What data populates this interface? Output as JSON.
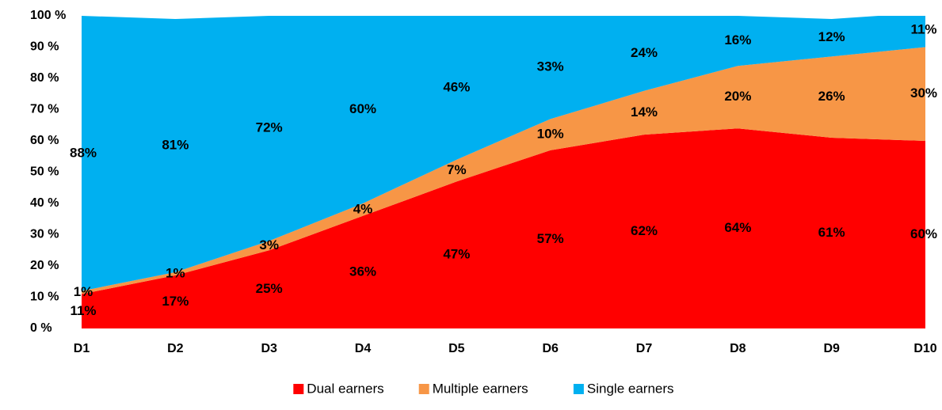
{
  "chart_data": {
    "type": "stacked-area",
    "categories": [
      "D1",
      "D2",
      "D3",
      "D4",
      "D5",
      "D6",
      "D7",
      "D8",
      "D9",
      "D10"
    ],
    "series": [
      {
        "name": "Dual earners",
        "color": "#ff0000",
        "values": [
          11,
          17,
          25,
          36,
          47,
          57,
          62,
          64,
          61,
          60
        ],
        "value_labels": [
          "11%",
          "17%",
          "25%",
          "36%",
          "47%",
          "57%",
          "62%",
          "64%",
          "61%",
          "60%"
        ]
      },
      {
        "name": "Multiple earners",
        "color": "#f79646",
        "values": [
          1,
          1,
          3,
          4,
          7,
          10,
          14,
          20,
          26,
          30
        ],
        "value_labels": [
          "1%",
          "1%",
          "3%",
          "4%",
          "7%",
          "10%",
          "14%",
          "20%",
          "26%",
          "30%"
        ]
      },
      {
        "name": "Single earners",
        "color": "#00b0f0",
        "values": [
          88,
          81,
          72,
          60,
          46,
          33,
          24,
          16,
          12,
          11
        ],
        "value_labels": [
          "88%",
          "81%",
          "72%",
          "60%",
          "46%",
          "33%",
          "24%",
          "16%",
          "12%",
          "11%"
        ]
      }
    ],
    "ylim": [
      0,
      100
    ],
    "yticks": [
      {
        "value": 0,
        "label": "0 %"
      },
      {
        "value": 10,
        "label": "10 %"
      },
      {
        "value": 20,
        "label": "20 %"
      },
      {
        "value": 30,
        "label": "30 %"
      },
      {
        "value": 40,
        "label": "40 %"
      },
      {
        "value": 50,
        "label": "50 %"
      },
      {
        "value": 60,
        "label": "60 %"
      },
      {
        "value": 70,
        "label": "70 %"
      },
      {
        "value": 80,
        "label": "80 %"
      },
      {
        "value": 90,
        "label": "90 %"
      },
      {
        "value": 100,
        "label": "100 %"
      }
    ],
    "legend": "bottom"
  }
}
